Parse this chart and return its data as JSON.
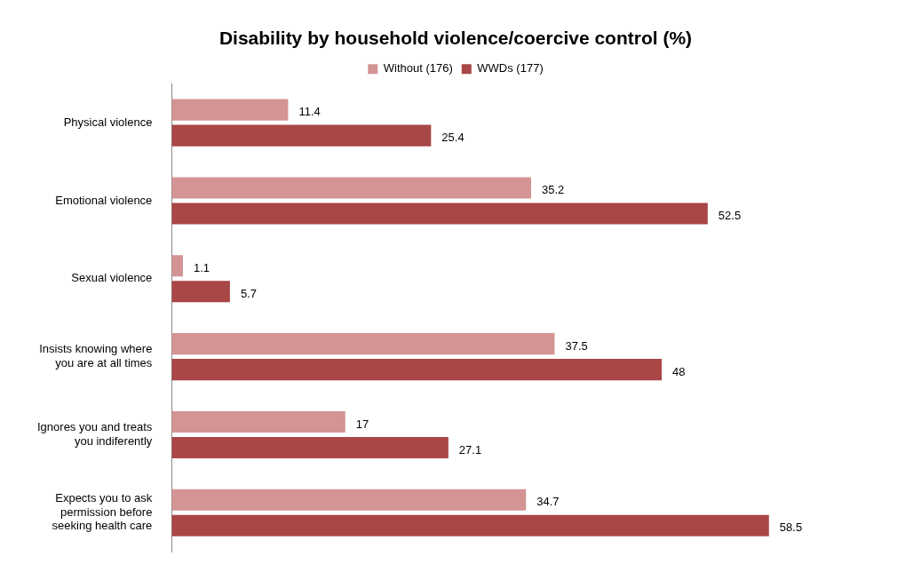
{
  "chart_data": {
    "type": "bar",
    "orientation": "horizontal",
    "title": "Disability by household violence/coercive control (%)",
    "categories": [
      "Physical violence",
      "Emotional violence",
      "Sexual violence",
      "Insists knowing where you are at all times",
      "Ignores you and treats you indiferently",
      "Expects you to ask permission before seeking health care"
    ],
    "series": [
      {
        "name": "Without (176)",
        "color": "#d49494",
        "values": [
          11.4,
          35.2,
          1.1,
          37.5,
          17,
          34.7
        ]
      },
      {
        "name": "WWDs (177)",
        "color": "#a94646",
        "values": [
          25.4,
          52.5,
          5.7,
          48,
          27.1,
          58.5
        ]
      }
    ],
    "data_labels": true,
    "legend": "top",
    "tick_labels": "y"
  }
}
